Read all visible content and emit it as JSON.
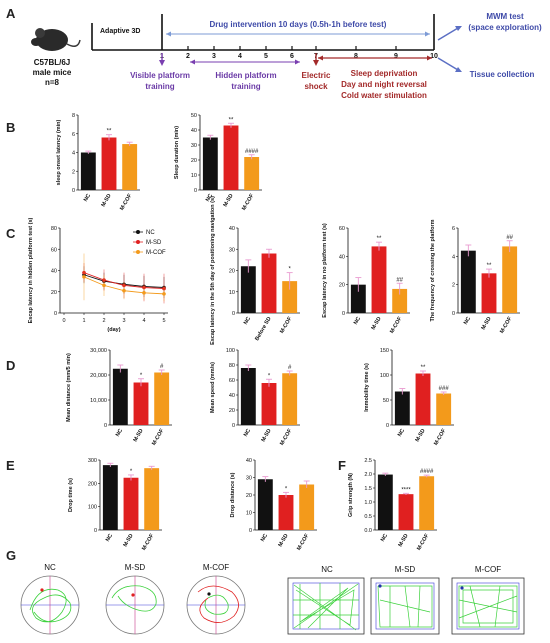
{
  "panel_letters": {
    "a": "A",
    "b": "B",
    "c": "C",
    "d": "D",
    "e": "E",
    "f": "F",
    "g": "G"
  },
  "timeline": {
    "mouse_line1": "C57BL/6J",
    "mouse_line2": "male mice",
    "mouse_line3": "n=8",
    "adaptive_label": "Adaptive 3D",
    "drug_label": "Drug intervention 10 days (0.5h-1h before test)",
    "day_ticks": [
      "1",
      "2",
      "3",
      "4",
      "5",
      "6",
      "7",
      "8",
      "9",
      "10"
    ],
    "visible_label_1": "Visible platform",
    "visible_label_2": "training",
    "hidden_label_1": "Hidden platform",
    "hidden_label_2": "training",
    "electric_label_1": "Electric",
    "electric_label_2": "shock",
    "sleep_label_1": "Sleep deprivation",
    "sleep_label_2": "Day and night reversal",
    "sleep_label_3": "Cold water stimulation",
    "mwm_label_1": "MWM test",
    "mwm_label_2": "(space exploration)",
    "tissue_label": "Tissue collection"
  },
  "colors": {
    "NC": "#111111",
    "M-SD": "#e02020",
    "M-COF": "#f39a1b",
    "arrow_blue": "#5b6fc4",
    "arrow_red": "#b03030",
    "arrow_purple": "#7a3fb0"
  },
  "chart_data": [
    {
      "id": "B1",
      "type": "bar",
      "categories": [
        "NC",
        "M-SD",
        "M-COF"
      ],
      "values": [
        4.0,
        5.6,
        4.9
      ],
      "errors": [
        0.15,
        0.3,
        0.2
      ],
      "ylabel": "sleep onset latency (min)",
      "ylim": [
        0,
        8
      ],
      "yticks": [
        "0",
        "2",
        "4",
        "6",
        "8"
      ],
      "annotations": [
        "",
        "**",
        ""
      ]
    },
    {
      "id": "B2",
      "type": "bar",
      "categories": [
        "NC",
        "M-SD",
        "M-COF"
      ],
      "values": [
        35,
        43,
        22
      ],
      "errors": [
        1.5,
        1.5,
        1.5
      ],
      "ylabel": "Sleep duration (min)",
      "ylim": [
        0,
        50
      ],
      "yticks": [
        "0",
        "10",
        "20",
        "30",
        "40",
        "50"
      ],
      "annotations": [
        "",
        "**",
        "####"
      ]
    },
    {
      "id": "C1",
      "type": "line",
      "x": [
        1,
        2,
        3,
        4,
        5
      ],
      "xlabel": "(day)",
      "ylabel": "Escap latency in hidden platform test (s)",
      "ylim": [
        0,
        80
      ],
      "yticks": [
        "0",
        "20",
        "40",
        "60",
        "80"
      ],
      "xticks": [
        "0",
        "1",
        "2",
        "3",
        "4",
        "5"
      ],
      "series": [
        {
          "name": "NC",
          "values": [
            36,
            30,
            27,
            25,
            24
          ],
          "errors": [
            8,
            8,
            9,
            10,
            10
          ]
        },
        {
          "name": "M-SD",
          "values": [
            38,
            31,
            26,
            24,
            23
          ],
          "errors": [
            9,
            10,
            12,
            13,
            14
          ]
        },
        {
          "name": "M-COF",
          "values": [
            34,
            26,
            21,
            19,
            18
          ],
          "errors": [
            22,
            10,
            8,
            7,
            7
          ]
        }
      ],
      "legend": "top-right"
    },
    {
      "id": "C2",
      "type": "bar",
      "categories": [
        "NC",
        "Before SD",
        "M-COF"
      ],
      "values": [
        22,
        28,
        15
      ],
      "errors": [
        3,
        2,
        4
      ],
      "ylabel": "Escap latency in the 5th day of positioning navigation (s)",
      "ylim": [
        0,
        40
      ],
      "yticks": [
        "0",
        "10",
        "20",
        "30",
        "40"
      ],
      "annotations": [
        "",
        "",
        "*"
      ]
    },
    {
      "id": "C3",
      "type": "bar",
      "categories": [
        "NC",
        "M-SD",
        "M-COF"
      ],
      "values": [
        20,
        47,
        17
      ],
      "errors": [
        5,
        3,
        4
      ],
      "ylabel": "Escap latency in no platform test (s)",
      "ylim": [
        0,
        60
      ],
      "yticks": [
        "0",
        "20",
        "40",
        "60"
      ],
      "annotations": [
        "",
        "**",
        "##"
      ]
    },
    {
      "id": "C4",
      "type": "bar",
      "categories": [
        "NC",
        "M-SD",
        "M-COF"
      ],
      "values": [
        4.4,
        2.8,
        4.7
      ],
      "errors": [
        0.4,
        0.3,
        0.4
      ],
      "ylabel": "The frequency of crossing the platform",
      "ylim": [
        0,
        6
      ],
      "yticks": [
        "0",
        "2",
        "4",
        "6"
      ],
      "annotations": [
        "",
        "**",
        "##"
      ]
    },
    {
      "id": "D1",
      "type": "bar",
      "categories": [
        "NC",
        "M-SD",
        "M-COF"
      ],
      "values": [
        22500,
        17000,
        21000
      ],
      "errors": [
        1500,
        1500,
        1000
      ],
      "ylabel": "Mean distance (mm/5 min)",
      "ylim": [
        0,
        30000
      ],
      "yticks": [
        "0",
        "10,000",
        "20,000",
        "30,000"
      ],
      "annotations": [
        "",
        "*",
        "#"
      ]
    },
    {
      "id": "D2",
      "type": "bar",
      "categories": [
        "NC",
        "M-SD",
        "M-COF"
      ],
      "values": [
        76,
        56,
        69
      ],
      "errors": [
        4,
        5,
        3
      ],
      "ylabel": "Mean speed (mm/s)",
      "ylim": [
        0,
        100
      ],
      "yticks": [
        "0",
        "20",
        "40",
        "60",
        "80",
        "100"
      ],
      "annotations": [
        "",
        "*",
        "#"
      ]
    },
    {
      "id": "D3",
      "type": "bar",
      "categories": [
        "NC",
        "M-SD",
        "M-COF"
      ],
      "values": [
        67,
        103,
        63
      ],
      "errors": [
        6,
        5,
        3
      ],
      "ylabel": "Immobility time (s)",
      "ylim": [
        0,
        150
      ],
      "yticks": [
        "0",
        "50",
        "100",
        "150"
      ],
      "annotations": [
        "",
        "**",
        "###"
      ]
    },
    {
      "id": "E1",
      "type": "bar",
      "categories": [
        "NC",
        "M-SD",
        "M-COF"
      ],
      "values": [
        278,
        224,
        265
      ],
      "errors": [
        8,
        12,
        8
      ],
      "ylabel": "Drop time (s)",
      "ylim": [
        0,
        300
      ],
      "yticks": [
        "0",
        "100",
        "200",
        "300"
      ],
      "annotations": [
        "",
        "*",
        ""
      ]
    },
    {
      "id": "E2",
      "type": "bar",
      "categories": [
        "NC",
        "M-SD",
        "M-COF"
      ],
      "values": [
        29,
        20,
        26
      ],
      "errors": [
        1.5,
        1.5,
        2
      ],
      "ylabel": "Drop distance (s)",
      "ylim": [
        0,
        40
      ],
      "yticks": [
        "0",
        "10",
        "20",
        "30",
        "40"
      ],
      "annotations": [
        "",
        "*",
        ""
      ]
    },
    {
      "id": "F1",
      "type": "bar",
      "categories": [
        "NC",
        "M-SD",
        "M-COF"
      ],
      "values": [
        1.98,
        1.28,
        1.92
      ],
      "errors": [
        0.05,
        0.03,
        0.04
      ],
      "ylabel": "Grip strength (N)",
      "ylim": [
        0,
        2.5
      ],
      "yticks": [
        "0.0",
        "0.5",
        "1.0",
        "1.5",
        "2.0",
        "2.5"
      ],
      "annotations": [
        "",
        "****",
        "####"
      ]
    }
  ],
  "panel_g": {
    "maze_labels": [
      "NC",
      "M-SD",
      "M-COF"
    ],
    "field_labels": [
      "NC",
      "M-SD",
      "M-COF"
    ]
  }
}
